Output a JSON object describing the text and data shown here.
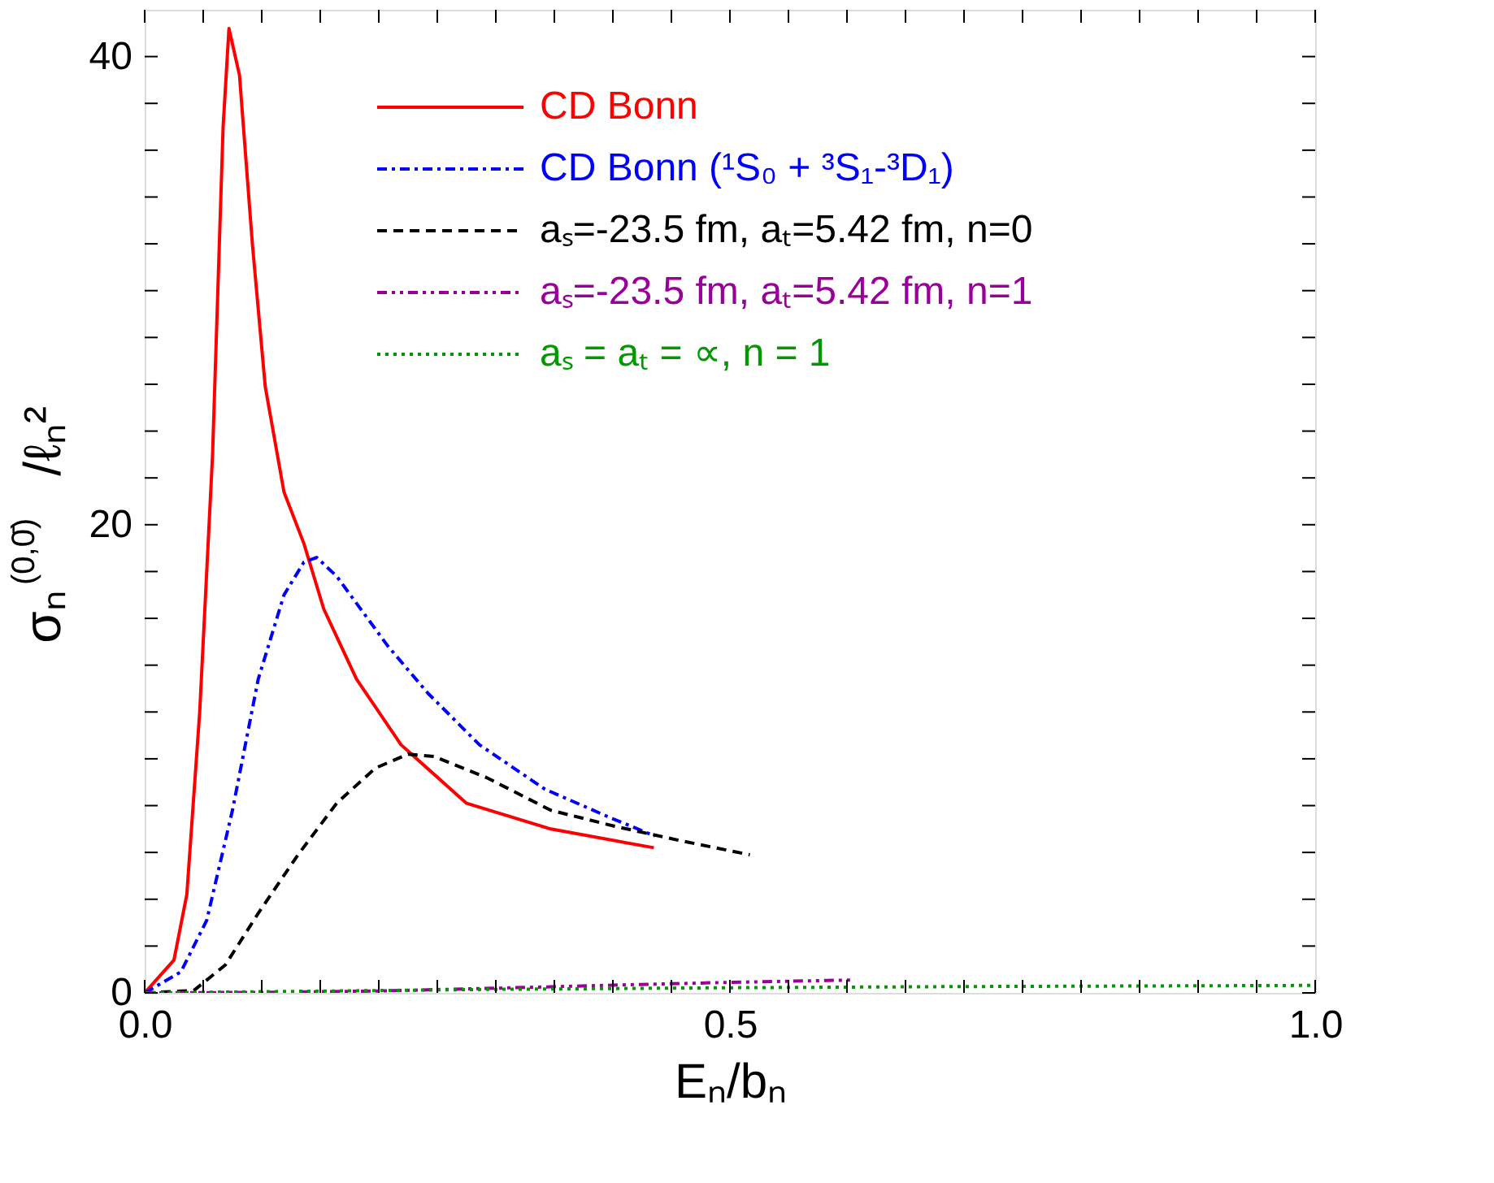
{
  "chart_data": {
    "type": "line",
    "xlabel": "Eₙ/bₙ",
    "ylabel": "σₙ$^{(0,0̄)}$/ℓₙ²",
    "xlim": [
      0,
      1.0
    ],
    "ylim": [
      0,
      42
    ],
    "xticks": [
      {
        "value": 0,
        "label": "0.0"
      },
      {
        "value": 0.05,
        "label": null
      },
      {
        "value": 0.1,
        "label": null
      },
      {
        "value": 0.15,
        "label": null
      },
      {
        "value": 0.2,
        "label": null
      },
      {
        "value": 0.25,
        "label": null
      },
      {
        "value": 0.3,
        "label": null
      },
      {
        "value": 0.35,
        "label": null
      },
      {
        "value": 0.4,
        "label": null
      },
      {
        "value": 0.45,
        "label": null
      },
      0.5,
      {
        "value": 0.55,
        "label": null
      },
      {
        "value": 0.6,
        "label": null
      },
      {
        "value": 0.65,
        "label": null
      },
      {
        "value": 0.7,
        "label": null
      },
      {
        "value": 0.75,
        "label": null
      },
      {
        "value": 0.8,
        "label": null
      },
      {
        "value": 0.85,
        "label": null
      },
      {
        "value": 0.9,
        "label": null
      },
      {
        "value": 0.95,
        "label": null
      },
      {
        "value": 1.0,
        "label": "1.0"
      }
    ],
    "yticks": [
      0,
      {
        "value": 2,
        "label": null
      },
      {
        "value": 4,
        "label": null
      },
      {
        "value": 6,
        "label": null
      },
      {
        "value": 8,
        "label": null
      },
      {
        "value": 10,
        "label": null
      },
      {
        "value": 12,
        "label": null
      },
      {
        "value": 14,
        "label": null
      },
      {
        "value": 16,
        "label": null
      },
      {
        "value": 18,
        "label": null
      },
      20,
      {
        "value": 22,
        "label": null
      },
      {
        "value": 24,
        "label": null
      },
      {
        "value": 26,
        "label": null
      },
      {
        "value": 28,
        "label": null
      },
      {
        "value": 30,
        "label": null
      },
      {
        "value": 32,
        "label": null
      },
      {
        "value": 34,
        "label": null
      },
      {
        "value": 36,
        "label": null
      },
      {
        "value": 38,
        "label": null
      },
      40
    ],
    "grid": false,
    "legend": "top right",
    "series": [
      {
        "name": "CD Bonn",
        "color": "#ff0000",
        "line_style": "solid",
        "x": [
          0,
          0.025,
          0.036,
          0.047,
          0.058,
          0.067,
          0.072,
          0.081,
          0.092,
          0.103,
          0.119,
          0.136,
          0.153,
          0.181,
          0.219,
          0.275,
          0.347,
          0.435
        ],
        "values": [
          0,
          1.4,
          4.2,
          12,
          23,
          37,
          41.2,
          39.2,
          32,
          25.9,
          21.4,
          19.2,
          16.4,
          13.4,
          10.6,
          8.1,
          7.0,
          6.2
        ]
      },
      {
        "name": "CD Bonn (¹S₀ + ³S₁-³D₁)",
        "color": "#0000ff",
        "line_style": "dashdot",
        "x": [
          0,
          0.031,
          0.053,
          0.075,
          0.097,
          0.119,
          0.136,
          0.147,
          0.164,
          0.208,
          0.242,
          0.286,
          0.342,
          0.397,
          0.436
        ],
        "values": [
          0,
          0.9,
          3.1,
          7.8,
          13.4,
          17,
          18.4,
          18.6,
          17.8,
          14.8,
          12.8,
          10.6,
          8.7,
          7.5,
          6.7
        ]
      },
      {
        "name": "aₛ=-23.5 fm, aₜ=5.42 fm, n=0",
        "color": "#000000",
        "line_style": "dashed",
        "x": [
          0,
          0.042,
          0.069,
          0.097,
          0.131,
          0.164,
          0.197,
          0.225,
          0.247,
          0.292,
          0.347,
          0.403,
          0.458,
          0.517
        ],
        "values": [
          0,
          0.1,
          1.2,
          3.4,
          5.9,
          8.1,
          9.6,
          10.2,
          10.1,
          9.2,
          7.8,
          7.1,
          6.5,
          5.9
        ]
      },
      {
        "name": "aₛ=-23.5 fm, aₜ=5.42 fm, n=1",
        "color": "#990099",
        "line_style": "dashdotdot",
        "x": [
          0,
          0.1,
          0.2,
          0.3,
          0.4,
          0.5,
          0.606
        ],
        "values": [
          0,
          0.02,
          0.08,
          0.2,
          0.33,
          0.45,
          0.55
        ]
      },
      {
        "name": "aₛ = aₜ = ∝,   n = 1",
        "color": "#009900",
        "line_style": "dotted",
        "x": [
          0,
          0.1,
          0.3,
          0.5,
          0.7,
          1.0
        ],
        "values": [
          0,
          0.05,
          0.15,
          0.22,
          0.27,
          0.32
        ]
      }
    ]
  }
}
